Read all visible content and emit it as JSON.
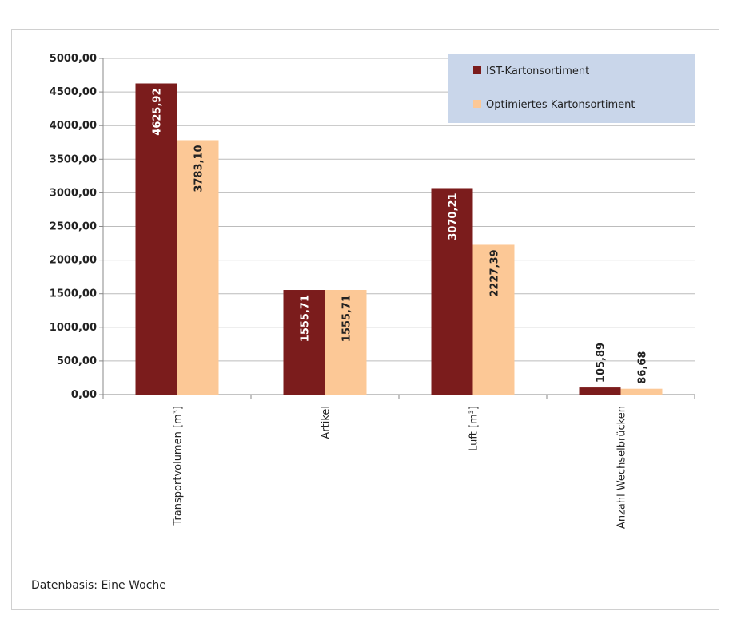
{
  "chart_data": {
    "type": "bar",
    "categories": [
      "Transportvolumen [m³]",
      "Artikel",
      "Luft  [m³]",
      "Anzahl Wechselbrücken"
    ],
    "series": [
      {
        "name": "IST-Kartonsortiment",
        "values": [
          4625.92,
          1555.71,
          3070.21,
          105.89
        ],
        "labels": [
          "4625,92",
          "1555,71",
          "3070,21",
          "105,89"
        ],
        "color": "#7b1c1c"
      },
      {
        "name": "Optimiertes Kartonsortiment",
        "values": [
          3783.1,
          1555.71,
          2227.39,
          86.68
        ],
        "labels": [
          "3783,10",
          "1555,71",
          "2227,39",
          "86,68"
        ],
        "color": "#fcc896"
      }
    ],
    "ylim": [
      0,
      5000
    ],
    "yticks": [
      0,
      500,
      1000,
      1500,
      2000,
      2500,
      3000,
      3500,
      4000,
      4500,
      5000
    ],
    "ytick_labels": [
      "0,00",
      "500,00",
      "1000,00",
      "1500,00",
      "2000,00",
      "2500,00",
      "3000,00",
      "3500,00",
      "4000,00",
      "4500,00",
      "5000,00"
    ],
    "grid": true,
    "legend_position": "top-right",
    "footnote": "Datenbasis: Eine Woche"
  }
}
